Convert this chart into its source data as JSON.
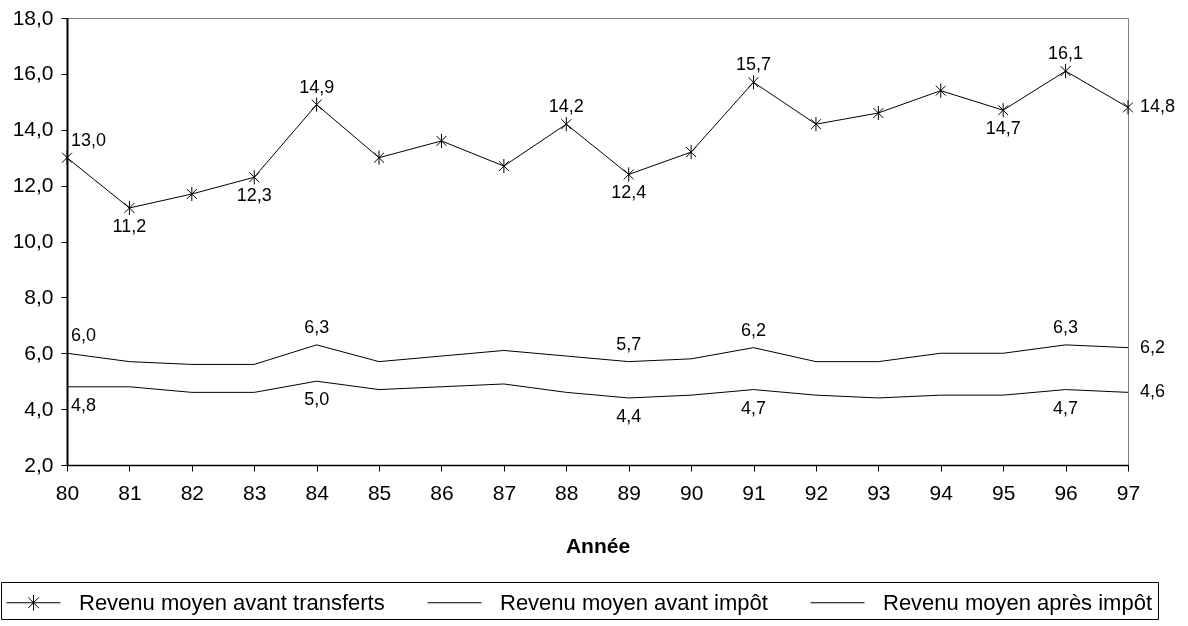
{
  "chart_data": {
    "type": "line",
    "xlabel": "Année",
    "legend": "bottom",
    "categories": [
      "80",
      "81",
      "82",
      "83",
      "84",
      "85",
      "86",
      "87",
      "88",
      "89",
      "90",
      "91",
      "92",
      "93",
      "94",
      "95",
      "96",
      "97"
    ],
    "ylim": [
      2,
      18
    ],
    "yticks": [
      {
        "value": 2,
        "label": "2,0"
      },
      {
        "value": 4,
        "label": "4,0"
      },
      {
        "value": 6,
        "label": "6,0"
      },
      {
        "value": 8,
        "label": "8,0"
      },
      {
        "value": 10,
        "label": "10,0"
      },
      {
        "value": 12,
        "label": "12,0"
      },
      {
        "value": 14,
        "label": "14,0"
      },
      {
        "value": 16,
        "label": "16,0"
      },
      {
        "value": 18,
        "label": "18,0"
      }
    ],
    "series": [
      {
        "name": "Revenu moyen avant transferts",
        "color": "#000000",
        "marker": "cross",
        "values": [
          13.0,
          11.2,
          11.7,
          12.3,
          14.9,
          13.0,
          13.6,
          12.7,
          14.2,
          12.4,
          13.2,
          15.7,
          14.2,
          14.6,
          15.4,
          14.7,
          16.1,
          14.8
        ],
        "value_labels": [
          "13,0",
          "11,2",
          null,
          "12,3",
          "14,9",
          null,
          null,
          null,
          "14,2",
          "12,4",
          null,
          "15,7",
          null,
          null,
          null,
          "14,7",
          "16,1",
          "14,8"
        ]
      },
      {
        "name": "Revenu moyen avant impôt",
        "color": "#000000",
        "values": [
          6.0,
          5.7,
          5.6,
          5.6,
          6.3,
          5.7,
          5.9,
          6.1,
          5.9,
          5.7,
          5.8,
          6.2,
          5.7,
          5.7,
          6.0,
          6.0,
          6.3,
          6.2
        ],
        "value_labels": [
          "6,0",
          null,
          null,
          null,
          "6,3",
          null,
          null,
          null,
          null,
          "5,7",
          null,
          "6,2",
          null,
          null,
          null,
          null,
          "6,3",
          "6,2"
        ]
      },
      {
        "name": "Revenu moyen après impôt",
        "color": "#000000",
        "values": [
          4.8,
          4.8,
          4.6,
          4.6,
          5.0,
          4.7,
          4.8,
          4.9,
          4.6,
          4.4,
          4.5,
          4.7,
          4.5,
          4.4,
          4.5,
          4.5,
          4.7,
          4.6
        ],
        "value_labels": [
          "4,8",
          null,
          null,
          null,
          "5,0",
          null,
          null,
          null,
          null,
          "4,4",
          null,
          "4,7",
          null,
          null,
          null,
          null,
          "4,7",
          "4,6"
        ]
      }
    ]
  }
}
